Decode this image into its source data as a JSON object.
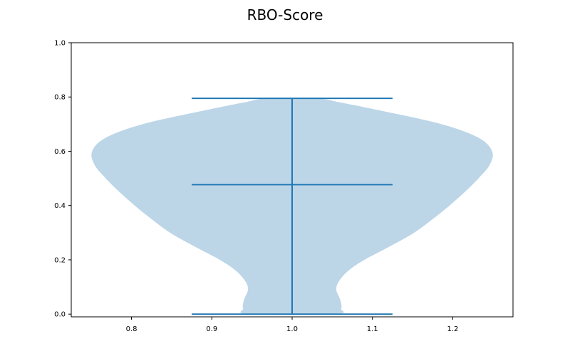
{
  "chart_data": {
    "type": "violin",
    "title": "RBO-Score",
    "xlabel": "",
    "ylabel": "",
    "xlim": [
      0.725,
      1.275
    ],
    "ylim": [
      -0.01,
      1.0
    ],
    "x_ticks": [
      0.8,
      0.9,
      1.0,
      1.1,
      1.2
    ],
    "x_tick_labels": [
      "0.8",
      "0.9",
      "1.0",
      "1.1",
      "1.2"
    ],
    "y_ticks": [
      0.0,
      0.2,
      0.4,
      0.6,
      0.8,
      1.0
    ],
    "y_tick_labels": [
      "0.0",
      "0.2",
      "0.4",
      "0.6",
      "0.8",
      "1.0"
    ],
    "grid": false,
    "violin": {
      "position": 1.0,
      "min": 0.0,
      "max": 0.795,
      "median": 0.477,
      "max_half_width": 0.25,
      "fill_color": "#bcd6e8",
      "line_color": "#1f77b4",
      "cap_half_width": 0.125,
      "density_profile": [
        {
          "y": 0.0,
          "half_width": 0.054
        },
        {
          "y": 0.02,
          "half_width": 0.061
        },
        {
          "y": 0.04,
          "half_width": 0.061
        },
        {
          "y": 0.06,
          "half_width": 0.059
        },
        {
          "y": 0.09,
          "half_width": 0.055
        },
        {
          "y": 0.12,
          "half_width": 0.058
        },
        {
          "y": 0.16,
          "half_width": 0.07
        },
        {
          "y": 0.2,
          "half_width": 0.09
        },
        {
          "y": 0.25,
          "half_width": 0.122
        },
        {
          "y": 0.3,
          "half_width": 0.152
        },
        {
          "y": 0.35,
          "half_width": 0.175
        },
        {
          "y": 0.4,
          "half_width": 0.196
        },
        {
          "y": 0.45,
          "half_width": 0.215
        },
        {
          "y": 0.5,
          "half_width": 0.232
        },
        {
          "y": 0.55,
          "half_width": 0.246
        },
        {
          "y": 0.6,
          "half_width": 0.249
        },
        {
          "y": 0.65,
          "half_width": 0.232
        },
        {
          "y": 0.7,
          "half_width": 0.186
        },
        {
          "y": 0.75,
          "half_width": 0.11
        },
        {
          "y": 0.78,
          "half_width": 0.06
        },
        {
          "y": 0.795,
          "half_width": 0.03
        }
      ]
    }
  }
}
